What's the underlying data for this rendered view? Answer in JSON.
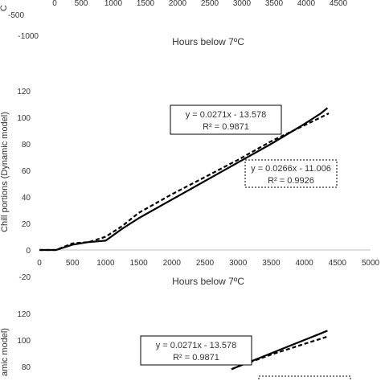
{
  "top_fragment": {
    "x_ticks": [
      "0",
      "500",
      "1000",
      "1500",
      "2000",
      "2500",
      "3000",
      "3500",
      "4000",
      "4500"
    ],
    "y_ticks": [
      "-500",
      "-1000"
    ],
    "xlabel": "Hours below 7ºC",
    "ylabel_fragment": "C"
  },
  "chart_data": [
    {
      "type": "line",
      "title": "",
      "xlabel": "Hours below 7ºC",
      "ylabel": "Chill portions (Dynamic model)",
      "xlim": [
        0,
        5000
      ],
      "ylim": [
        -20,
        120
      ],
      "x_ticks": [
        "0",
        "500",
        "1000",
        "1500",
        "2000",
        "2500",
        "3000",
        "3500",
        "4000",
        "4500",
        "5000"
      ],
      "y_ticks": [
        "120",
        "100",
        "80",
        "60",
        "40",
        "20",
        "0",
        "-20"
      ],
      "grid": false,
      "series": [
        {
          "style": "solid",
          "x": [
            0,
            250,
            500,
            750,
            1000,
            1250,
            1500,
            2000,
            2500,
            3000,
            3500,
            4000,
            4250,
            4350
          ],
          "y": [
            0,
            0,
            4,
            6,
            7,
            16,
            24,
            38,
            52,
            66,
            80,
            95,
            103,
            107
          ]
        },
        {
          "style": "dashed",
          "x": [
            0,
            250,
            500,
            750,
            1000,
            1250,
            1500,
            2000,
            2500,
            3000,
            3500,
            4000,
            4250,
            4370
          ],
          "y": [
            0,
            0,
            5,
            6,
            10,
            18,
            28,
            42,
            55,
            68,
            82,
            94,
            100,
            103
          ]
        }
      ],
      "annotations": [
        {
          "line1": "y = 0.0271x - 13.578",
          "line2": "R² = 0.9871",
          "border": "solid"
        },
        {
          "line1": "y = 0.0266x - 11.006",
          "line2": "R² = 0.9926",
          "border": "dotted"
        }
      ]
    },
    {
      "type": "line",
      "title": "",
      "xlabel": "",
      "ylabel": "amic model)",
      "xlim": [
        0,
        5000
      ],
      "ylim": [
        -20,
        120
      ],
      "y_ticks": [
        "120",
        "100",
        "80"
      ],
      "grid": false,
      "series": [
        {
          "style": "solid",
          "x": [
            2900,
            3000,
            3500,
            4000,
            4250,
            4350
          ],
          "y": [
            78,
            80,
            90,
            100,
            105,
            107
          ]
        },
        {
          "style": "dashed",
          "x": [
            2900,
            3000,
            3500,
            4000,
            4250,
            4370
          ],
          "y": [
            78,
            80,
            89,
            97,
            101,
            103
          ]
        }
      ],
      "annotations": [
        {
          "line1": "y = 0.0271x - 13.578",
          "line2": "R² = 0.9871",
          "border": "solid"
        }
      ]
    }
  ]
}
